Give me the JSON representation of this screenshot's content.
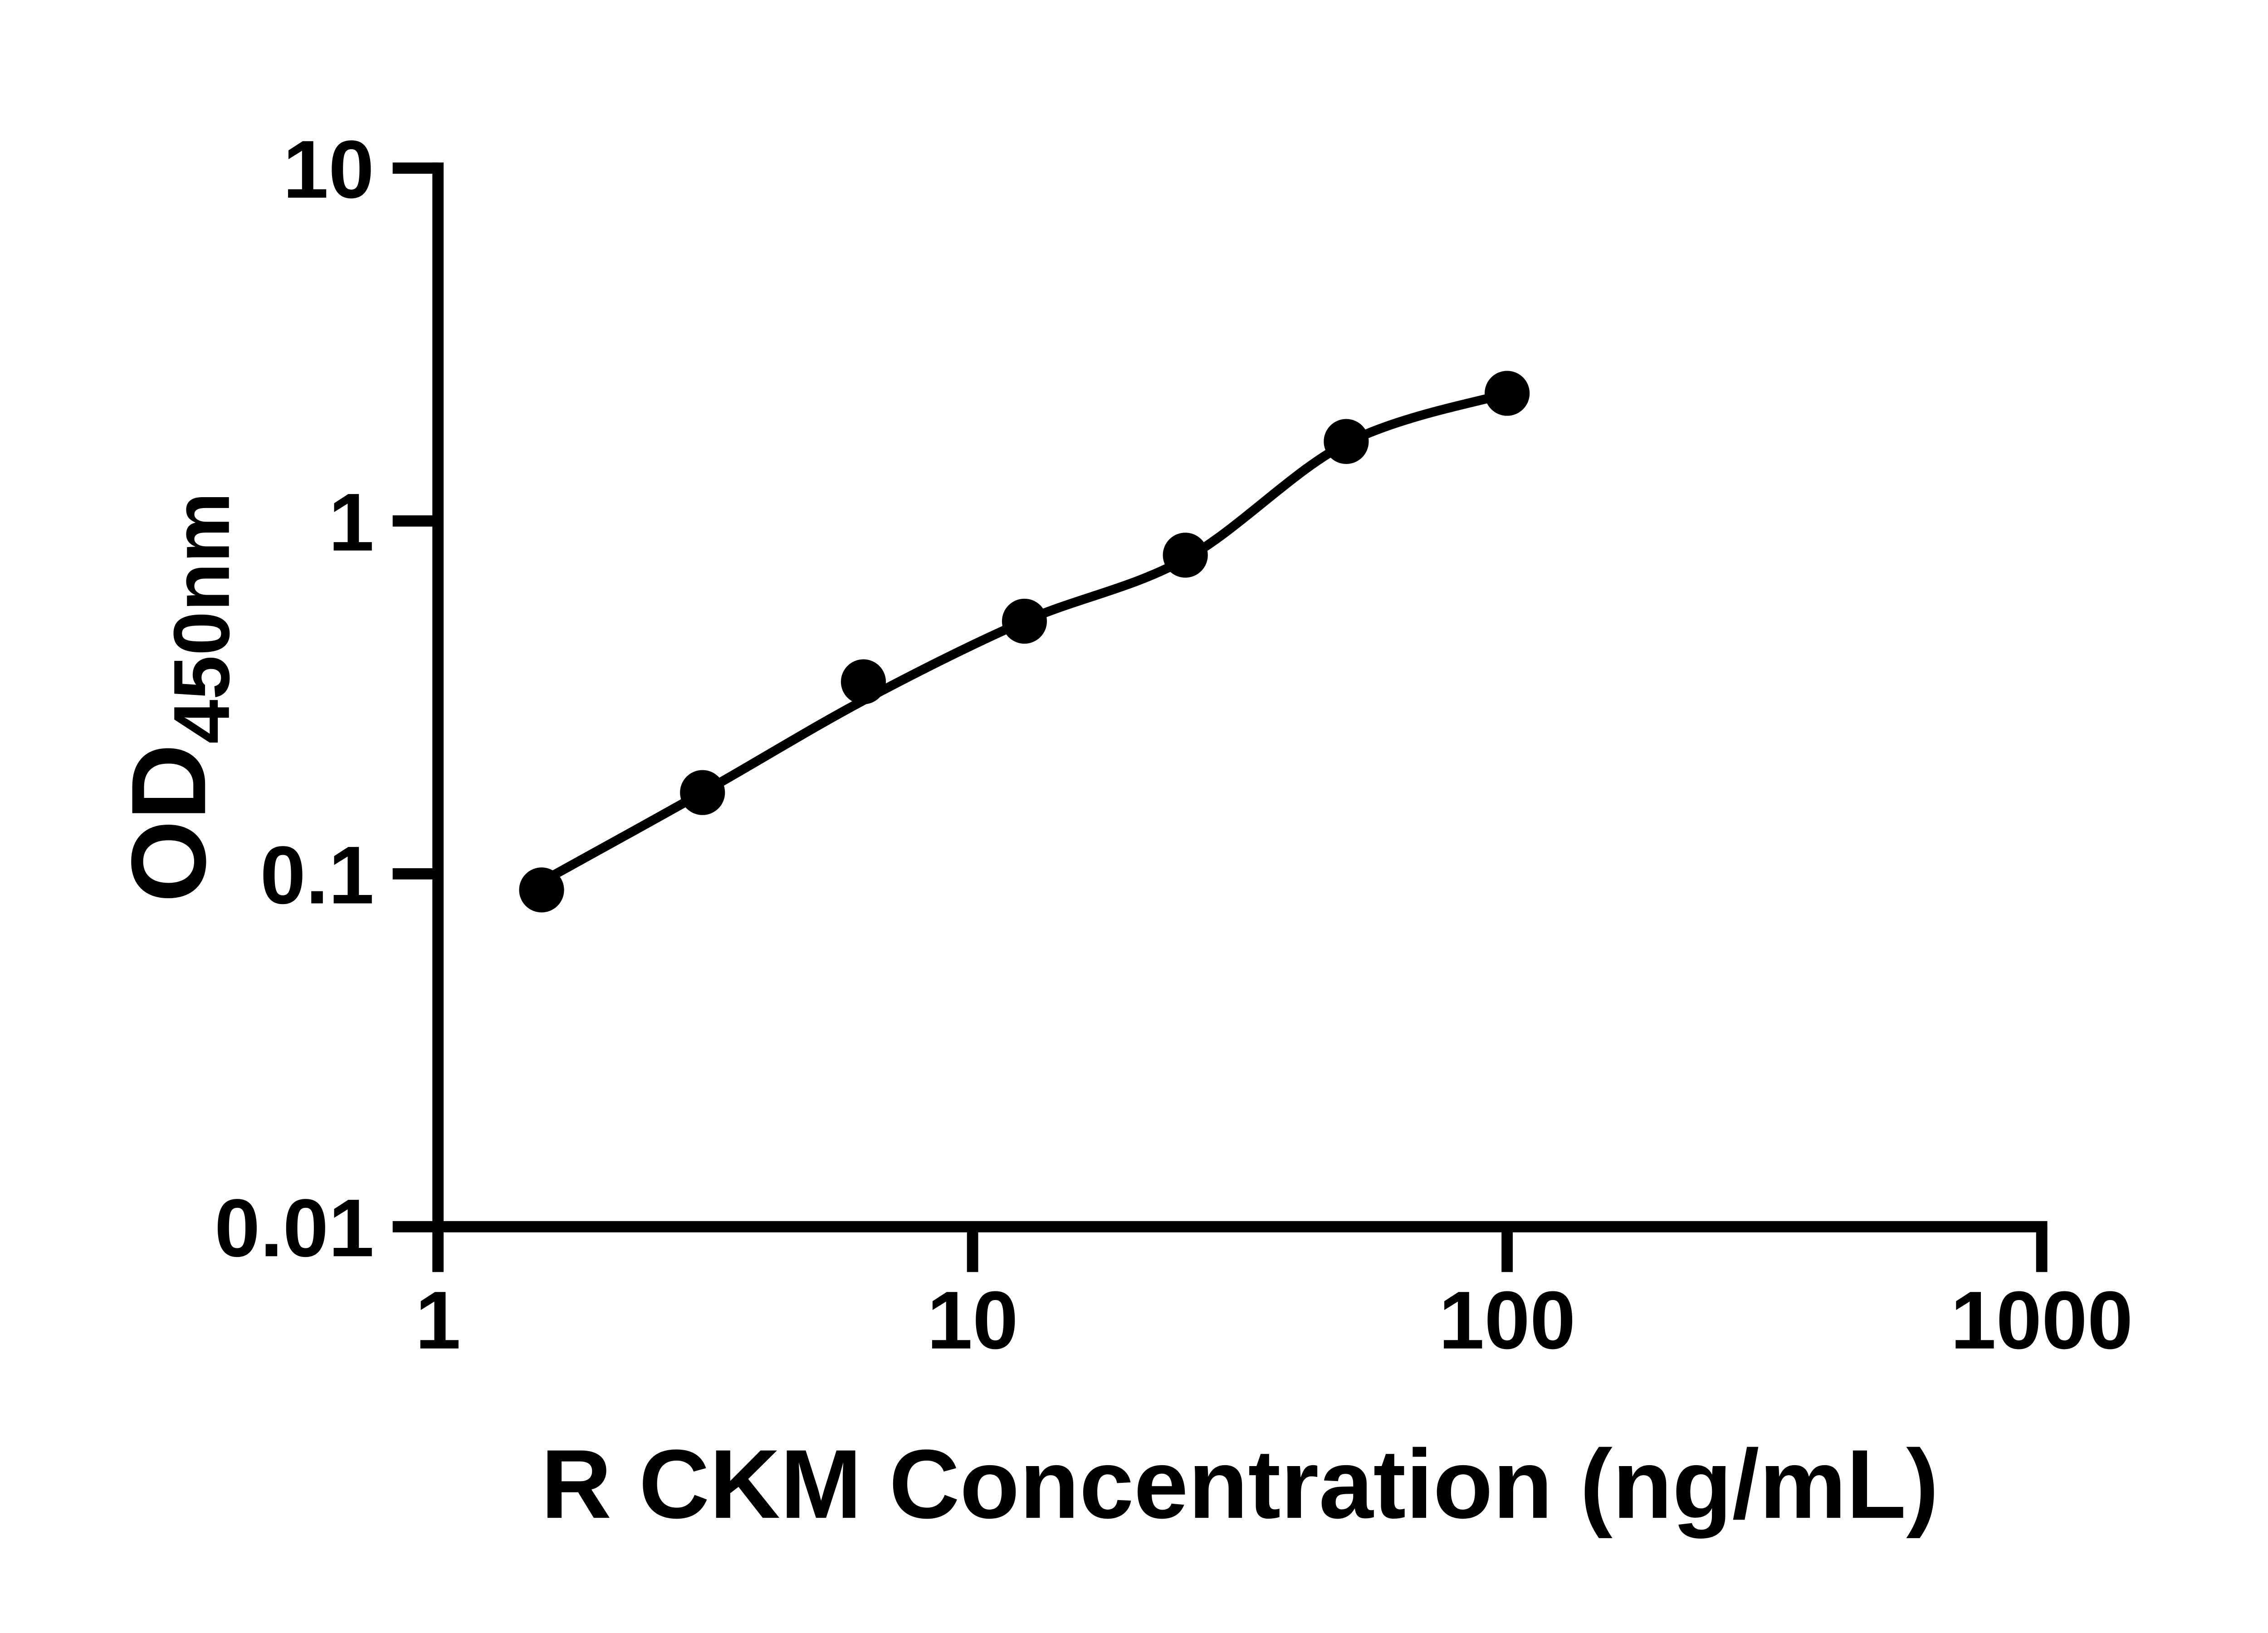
{
  "figure": {
    "background": "#ffffff",
    "ink": "#000000"
  },
  "chart_data": {
    "type": "scatter",
    "title": "",
    "xlabel": "R CKM Concentration (ng/mL)",
    "ylabel_main": "OD",
    "ylabel_sub": "450nm",
    "x_scale": "log10",
    "y_scale": "log10",
    "xlim": [
      1,
      1000
    ],
    "ylim": [
      0.01,
      10
    ],
    "grid": false,
    "legend": false,
    "x_ticks": [
      {
        "value": 1,
        "label": "1"
      },
      {
        "value": 10,
        "label": "10"
      },
      {
        "value": 100,
        "label": "100"
      },
      {
        "value": 1000,
        "label": "1000"
      }
    ],
    "y_ticks": [
      {
        "value": 10,
        "label": "10"
      },
      {
        "value": 1,
        "label": "1"
      },
      {
        "value": 0.1,
        "label": "0.1"
      },
      {
        "value": 0.01,
        "label": "0.01"
      }
    ],
    "series": [
      {
        "marker": "filled-circle",
        "color": "#000000",
        "x": [
          1.5625,
          3.125,
          6.25,
          12.5,
          25,
          50,
          100
        ],
        "y": [
          0.09,
          0.17,
          0.35,
          0.52,
          0.8,
          1.68,
          2.3
        ]
      }
    ],
    "fit_curve": {
      "color": "#000000",
      "x": [
        1.5625,
        3.125,
        6.25,
        12.5,
        25,
        50,
        100
      ],
      "y": [
        0.095,
        0.17,
        0.31,
        0.52,
        0.78,
        1.66,
        2.3
      ]
    }
  }
}
